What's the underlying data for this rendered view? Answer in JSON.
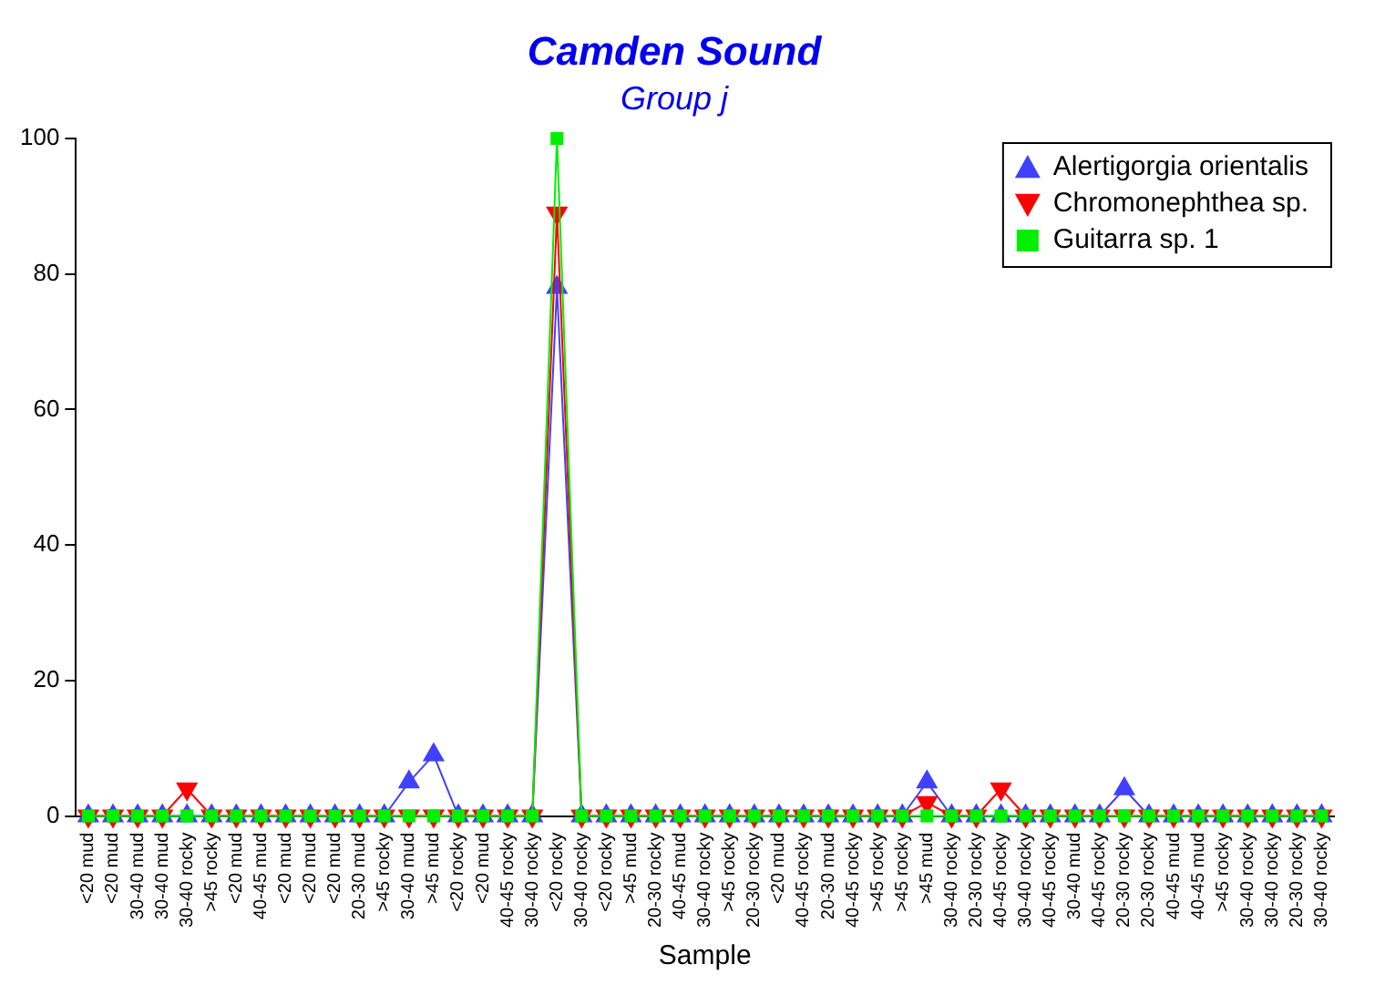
{
  "chart_data": {
    "type": "line",
    "title": "Camden Sound",
    "subtitle": "Group j",
    "xlabel": "Sample",
    "categories": [
      "<20 mud",
      "<20 mud",
      "30-40 mud",
      "30-40 mud",
      "30-40 rocky",
      ">45 rocky",
      "<20 mud",
      "40-45 mud",
      "<20 mud",
      "<20 mud",
      "<20 mud",
      "20-30 mud",
      ">45 rocky",
      "30-40 mud",
      ">45 mud",
      "<20 rocky",
      "<20 mud",
      "40-45 rocky",
      "30-40 rocky",
      "<20 rocky",
      "30-40 rocky",
      "<20 rocky",
      ">45 mud",
      "20-30 rocky",
      "40-45 mud",
      "30-40 rocky",
      ">45 rocky",
      "20-30 rocky",
      "<20 mud",
      "40-45 rocky",
      "20-30 mud",
      "40-45 rocky",
      ">45 rocky",
      ">45 rocky",
      ">45 mud",
      "30-40 rocky",
      "20-30 rocky",
      "40-45 rocky",
      "30-40 rocky",
      "40-45 rocky",
      "30-40 mud",
      "40-45 rocky",
      "20-30 rocky",
      "20-30 rocky",
      "40-45 mud",
      "40-45 mud",
      ">45 rocky",
      "30-40 rocky",
      "30-40 rocky",
      "20-30 rocky",
      "30-40 rocky"
    ],
    "series": [
      {
        "name": "Alertigorgia orientalis",
        "color": "#4040ff",
        "marker": "triangle",
        "values": [
          0,
          0,
          0,
          0,
          0,
          0,
          0,
          0,
          0,
          0,
          0,
          0,
          0,
          5,
          9,
          0,
          0,
          0,
          0,
          78,
          0,
          0,
          0,
          0,
          0,
          0,
          0,
          0,
          0,
          0,
          0,
          0,
          0,
          0,
          5,
          0,
          0,
          0,
          0,
          0,
          0,
          0,
          4,
          0,
          0,
          0,
          0,
          0,
          0,
          0,
          0
        ]
      },
      {
        "name": "Chromonephthea sp.",
        "color": "#ff0000",
        "marker": "triangle-down",
        "values": [
          0,
          0,
          0,
          0,
          4,
          0,
          0,
          0,
          0,
          0,
          0,
          0,
          0,
          0,
          0,
          0,
          0,
          0,
          0,
          89,
          0,
          0,
          0,
          0,
          0,
          0,
          0,
          0,
          0,
          0,
          0,
          0,
          0,
          0,
          2,
          0,
          0,
          4,
          0,
          0,
          0,
          0,
          0,
          0,
          0,
          0,
          0,
          0,
          0,
          0,
          0
        ]
      },
      {
        "name": "Guitarra sp. 1",
        "color": "#00ee00",
        "marker": "square",
        "values": [
          0,
          0,
          0,
          0,
          0,
          0,
          0,
          0,
          0,
          0,
          0,
          0,
          0,
          0,
          0,
          0,
          0,
          0,
          0,
          100,
          0,
          0,
          0,
          0,
          0,
          0,
          0,
          0,
          0,
          0,
          0,
          0,
          0,
          0,
          0,
          0,
          0,
          0,
          0,
          0,
          0,
          0,
          0,
          0,
          0,
          0,
          0,
          0,
          0,
          0,
          0
        ]
      }
    ],
    "ylim": [
      0,
      100
    ],
    "yticks": [
      0,
      20,
      40,
      60,
      80,
      100
    ],
    "grid": false,
    "legend": "top right",
    "line_style": "solid"
  }
}
